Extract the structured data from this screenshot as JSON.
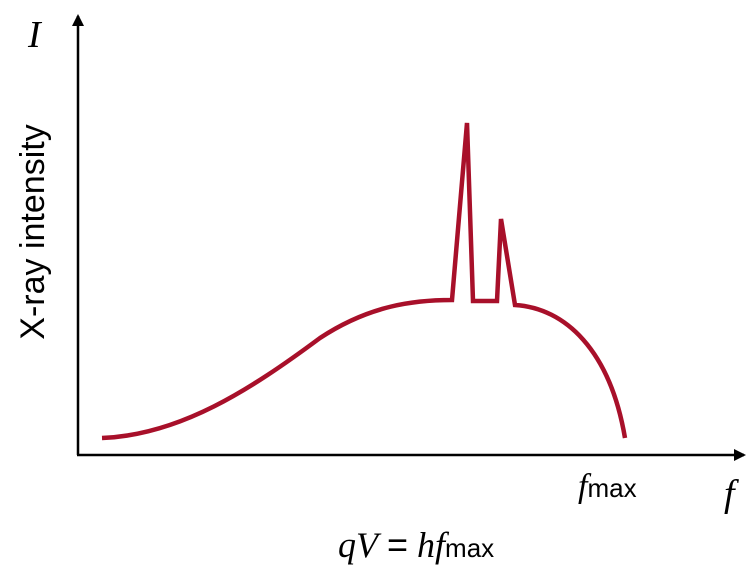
{
  "chart_data": {
    "type": "line",
    "title": "",
    "ylabel_symbol": "I",
    "ylabel": "X-ray intensity",
    "xlabel": "f",
    "x_tick_labels": [
      {
        "main": "f",
        "sub": "max"
      }
    ],
    "annotation": {
      "lhs": "qV",
      "eq": "=",
      "rhs_main": "hf",
      "rhs_sub": "max"
    },
    "features": [
      "continuous bremsstrahlung spectrum",
      "two characteristic peaks",
      "cutoff at f_max"
    ],
    "grid": false,
    "legend": "none"
  },
  "colors": {
    "curve": "#a8102a",
    "axes": "#000000"
  }
}
